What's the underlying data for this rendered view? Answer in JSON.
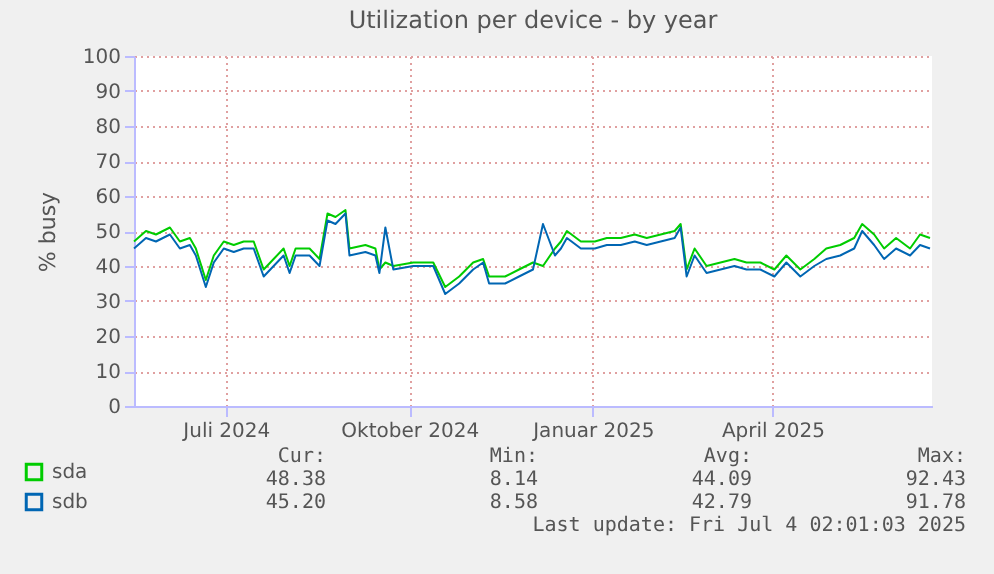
{
  "chart_data": {
    "type": "line",
    "title": "Utilization per device - by year",
    "ylabel": "% busy",
    "x": [
      "2024-05-30",
      "2024-06-05",
      "2024-06-10",
      "2024-06-17",
      "2024-06-22",
      "2024-06-27",
      "2024-06-30",
      "2024-07-05",
      "2024-07-09",
      "2024-07-14",
      "2024-07-19",
      "2024-07-24",
      "2024-07-29",
      "2024-08-03",
      "2024-08-08",
      "2024-08-13",
      "2024-08-16",
      "2024-08-19",
      "2024-08-26",
      "2024-08-31",
      "2024-09-04",
      "2024-09-08",
      "2024-09-13",
      "2024-09-15",
      "2024-09-23",
      "2024-09-28",
      "2024-09-30",
      "2024-10-03",
      "2024-10-07",
      "2024-10-17",
      "2024-10-27",
      "2024-11-02",
      "2024-11-09",
      "2024-11-16",
      "2024-11-21",
      "2024-11-24",
      "2024-12-02",
      "2024-12-09",
      "2024-12-16",
      "2024-12-21",
      "2024-12-27",
      "2024-12-30",
      "2025-01-02",
      "2025-01-09",
      "2025-01-16",
      "2025-01-22",
      "2025-01-29",
      "2025-02-05",
      "2025-02-11",
      "2025-02-18",
      "2025-02-25",
      "2025-02-28",
      "2025-03-03",
      "2025-03-07",
      "2025-03-13",
      "2025-03-20",
      "2025-03-27",
      "2025-04-02",
      "2025-04-09",
      "2025-04-16",
      "2025-04-22",
      "2025-04-29",
      "2025-05-06",
      "2025-05-12",
      "2025-05-19",
      "2025-05-26",
      "2025-05-30",
      "2025-06-05",
      "2025-06-10",
      "2025-06-16",
      "2025-06-23",
      "2025-06-28",
      "2025-07-03"
    ],
    "series": [
      {
        "name": "sda",
        "color": "#00cc00",
        "values": [
          47,
          50,
          49,
          51,
          47,
          48,
          45,
          36,
          43,
          47,
          46,
          47,
          47,
          39,
          42,
          45,
          40,
          45,
          45,
          42,
          55,
          54,
          56,
          45,
          46,
          45,
          39,
          41,
          40,
          41,
          41,
          34,
          37,
          41,
          42,
          37,
          37,
          39,
          41,
          40,
          45,
          47,
          50,
          47,
          47,
          48,
          48,
          49,
          48,
          49,
          50,
          52,
          39,
          45,
          40,
          41,
          42,
          41,
          41,
          39,
          43,
          39,
          42,
          45,
          46,
          48,
          52,
          49,
          45,
          48,
          45,
          49,
          48
        ]
      },
      {
        "name": "sdb",
        "color": "#0066b3",
        "values": [
          45,
          48,
          47,
          49,
          45,
          46,
          43,
          34,
          41,
          45,
          44,
          45,
          45,
          37,
          40,
          43,
          38,
          43,
          43,
          40,
          53,
          52,
          55,
          43,
          44,
          43,
          38,
          51,
          39,
          40,
          40,
          32,
          35,
          39,
          41,
          35,
          35,
          37,
          39,
          52,
          43,
          45,
          48,
          45,
          45,
          46,
          46,
          47,
          46,
          47,
          48,
          51,
          37,
          43,
          38,
          39,
          40,
          39,
          39,
          37,
          41,
          37,
          40,
          42,
          43,
          45,
          50,
          46,
          42,
          45,
          43,
          46,
          45
        ]
      }
    ],
    "xlim": [
      "2024-05-30",
      "2025-07-04"
    ],
    "xticks": [
      {
        "value": "2024-07-15",
        "label": "Juli 2024"
      },
      {
        "value": "2024-10-15",
        "label": "Oktober 2024"
      },
      {
        "value": "2025-01-15",
        "label": "Januar 2025"
      },
      {
        "value": "2025-04-15",
        "label": "April 2025"
      }
    ],
    "ylim": [
      0,
      100
    ],
    "yticks": [
      0,
      10,
      20,
      30,
      40,
      50,
      60,
      70,
      80,
      90,
      100
    ],
    "grid": true,
    "legend": "bottom left",
    "marker": "none",
    "line_style": "solid",
    "annotations": [
      "Cur:",
      "Min:",
      "Avg:",
      "Max:",
      "48.38",
      "8.14",
      "44.09",
      "92.43",
      "45.20",
      "8.58",
      "42.79",
      "91.78",
      "Last update: Fri Jul  4 02:01:03 2025"
    ]
  }
}
